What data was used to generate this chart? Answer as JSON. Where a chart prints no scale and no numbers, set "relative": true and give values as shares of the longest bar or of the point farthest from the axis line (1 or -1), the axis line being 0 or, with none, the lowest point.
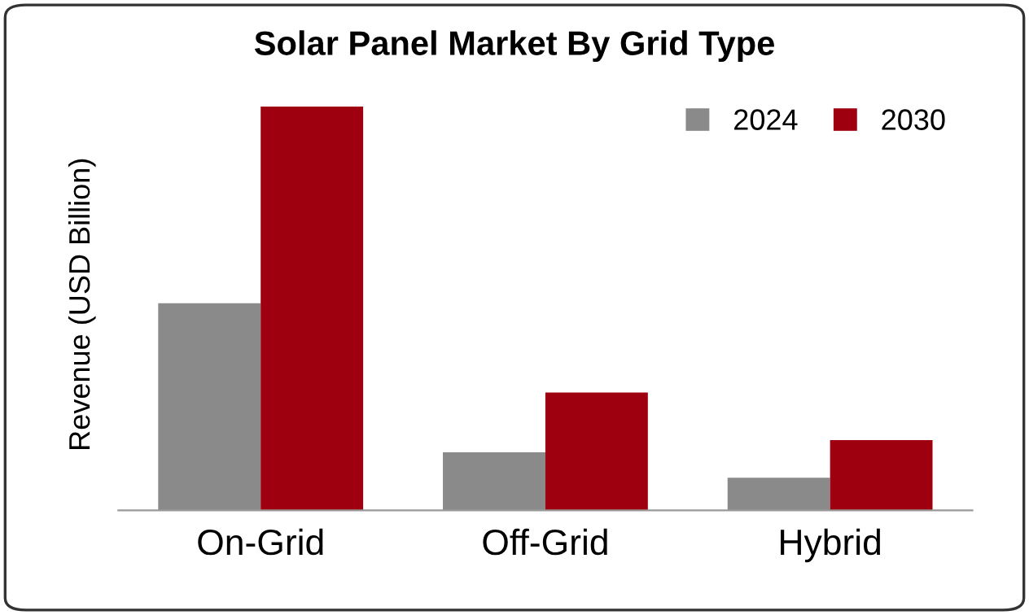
{
  "chart_data": {
    "type": "bar",
    "title": "Solar Panel Market By Grid Type",
    "ylabel": "Revenue (USD Billion)",
    "relative": true,
    "categories": [
      "On-Grid",
      "Off-Grid",
      "Hybrid"
    ],
    "series": [
      {
        "name": "2024",
        "color": "#8a8a8a",
        "values": [
          0.513,
          0.144,
          0.081
        ]
      },
      {
        "name": "2030",
        "color": "#9e0010",
        "values": [
          1,
          0.292,
          0.174
        ]
      }
    ],
    "legend": "top right",
    "grid": false
  }
}
